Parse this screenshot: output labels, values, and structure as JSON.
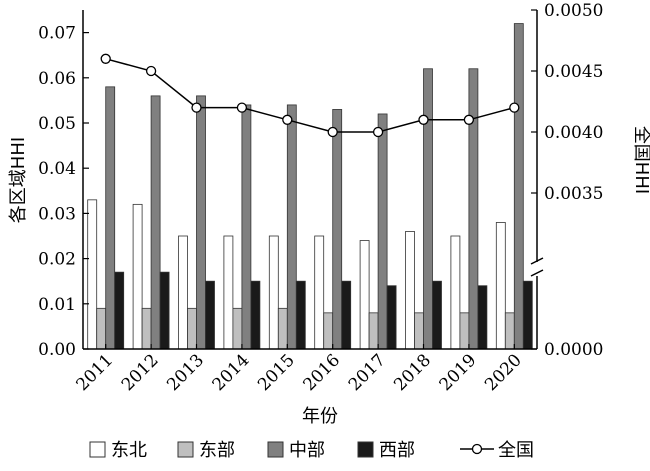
{
  "chart_data": {
    "type": "bar",
    "categories": [
      "2011",
      "2012",
      "2013",
      "2014",
      "2015",
      "2016",
      "2017",
      "2018",
      "2019",
      "2020"
    ],
    "series": [
      {
        "name": "东北",
        "kind": "bar",
        "axis": "left",
        "color": "#ffffff",
        "values": [
          0.033,
          0.032,
          0.025,
          0.025,
          0.025,
          0.025,
          0.024,
          0.026,
          0.025,
          0.028
        ]
      },
      {
        "name": "东部",
        "kind": "bar",
        "axis": "left",
        "color": "#bfbfbf",
        "values": [
          0.009,
          0.009,
          0.009,
          0.009,
          0.009,
          0.008,
          0.008,
          0.008,
          0.008,
          0.008
        ]
      },
      {
        "name": "中部",
        "kind": "bar",
        "axis": "left",
        "color": "#808080",
        "values": [
          0.058,
          0.056,
          0.056,
          0.054,
          0.054,
          0.053,
          0.052,
          0.062,
          0.062,
          0.072
        ]
      },
      {
        "name": "西部",
        "kind": "bar",
        "axis": "left",
        "color": "#1a1a1a",
        "values": [
          0.017,
          0.017,
          0.015,
          0.015,
          0.015,
          0.015,
          0.014,
          0.015,
          0.014,
          0.015
        ]
      },
      {
        "name": "全国",
        "kind": "line",
        "axis": "right",
        "color": "#000000",
        "values": [
          0.0046,
          0.0045,
          0.0042,
          0.0042,
          0.0041,
          0.004,
          0.004,
          0.0041,
          0.0041,
          0.0042
        ]
      }
    ],
    "xlabel": "年份",
    "ylabel": "各区域HHI",
    "y2label": "全国HHI",
    "ylim": [
      0,
      0.075
    ],
    "yticks": [
      "0.00",
      "0.01",
      "0.02",
      "0.03",
      "0.04",
      "0.05",
      "0.06",
      "0.07"
    ],
    "y2lim": [
      0.003,
      0.005
    ],
    "y2ticks": [
      "0.0000",
      "0.0035",
      "0.0040",
      "0.0045",
      "0.0050"
    ],
    "y2_axis_break": true,
    "legend_position": "bottom",
    "grid": false
  }
}
